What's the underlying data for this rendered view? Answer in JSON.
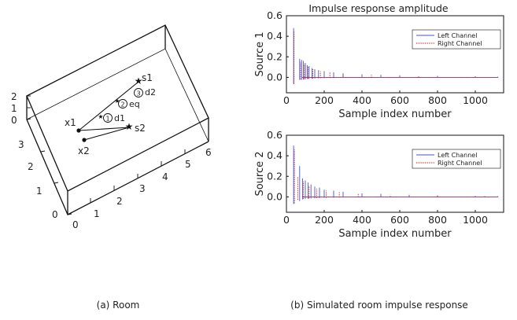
{
  "room": {
    "caption": "(a) Room",
    "x_ticks": [
      "0",
      "1",
      "2",
      "3",
      "4",
      "5",
      "6"
    ],
    "y_ticks": [
      "0",
      "1",
      "2",
      "3"
    ],
    "z_ticks": [
      "0",
      "1",
      "2"
    ],
    "points": [
      {
        "label": "x1"
      },
      {
        "label": "x2"
      },
      {
        "label": "s1"
      },
      {
        "label": "s2"
      }
    ],
    "path_labels": [
      {
        "num": "1",
        "text": "d1"
      },
      {
        "num": "2",
        "text": "eq"
      },
      {
        "num": "3",
        "text": "d2"
      }
    ]
  },
  "ir": {
    "caption": "(b) Simulated room impulse response",
    "title": "Impulse response amplitude",
    "colors": {
      "left": "#4455cc",
      "right": "#cc2222"
    }
  },
  "chart_data": [
    {
      "type": "line",
      "panel": "top",
      "title": "Impulse response amplitude",
      "xlabel": "Sample index number",
      "ylabel": "Source 1",
      "xlim": [
        0,
        1150
      ],
      "ylim": [
        -0.15,
        0.6
      ],
      "x_ticks": [
        0,
        200,
        400,
        600,
        800,
        1000
      ],
      "y_ticks": [
        0.0,
        0.2,
        0.4,
        0.6
      ],
      "legend": "top-right",
      "series": [
        {
          "name": "Left Channel",
          "style": "solid",
          "peaks": [
            [
              38,
              0.48
            ],
            [
              70,
              0.18
            ],
            [
              80,
              0.17
            ],
            [
              90,
              0.16
            ],
            [
              100,
              0.14
            ],
            [
              110,
              0.12
            ],
            [
              120,
              0.11
            ],
            [
              135,
              0.09
            ],
            [
              150,
              0.08
            ],
            [
              170,
              0.07
            ],
            [
              200,
              0.06
            ],
            [
              250,
              0.05
            ],
            [
              300,
              0.04
            ],
            [
              400,
              0.03
            ],
            [
              500,
              0.025
            ],
            [
              600,
              0.02
            ],
            [
              800,
              0.015
            ],
            [
              1000,
              0.01
            ],
            [
              1120,
              0.008
            ]
          ]
        },
        {
          "name": "Right Channel",
          "style": "dotted",
          "peaks": [
            [
              40,
              0.45
            ],
            [
              75,
              0.15
            ],
            [
              95,
              0.13
            ],
            [
              115,
              0.1
            ],
            [
              140,
              0.08
            ],
            [
              180,
              0.06
            ],
            [
              230,
              0.05
            ],
            [
              300,
              0.035
            ],
            [
              450,
              0.025
            ],
            [
              700,
              0.015
            ],
            [
              1000,
              0.008
            ]
          ]
        }
      ]
    },
    {
      "type": "line",
      "panel": "bottom",
      "xlabel": "Sample index number",
      "ylabel": "Source 2",
      "xlim": [
        0,
        1150
      ],
      "ylim": [
        -0.15,
        0.6
      ],
      "x_ticks": [
        0,
        200,
        400,
        600,
        800,
        1000
      ],
      "y_ticks": [
        0.0,
        0.2,
        0.4,
        0.6
      ],
      "legend": "top-right",
      "series": [
        {
          "name": "Left Channel",
          "style": "solid",
          "peaks": [
            [
              38,
              0.5
            ],
            [
              70,
              0.3
            ],
            [
              85,
              0.18
            ],
            [
              100,
              0.16
            ],
            [
              115,
              0.14
            ],
            [
              130,
              0.12
            ],
            [
              150,
              0.1
            ],
            [
              175,
              0.09
            ],
            [
              200,
              0.07
            ],
            [
              250,
              0.06
            ],
            [
              300,
              0.05
            ],
            [
              400,
              0.035
            ],
            [
              500,
              0.03
            ],
            [
              650,
              0.02
            ],
            [
              800,
              0.015
            ],
            [
              1000,
              0.01
            ],
            [
              1120,
              0.008
            ]
          ]
        },
        {
          "name": "Right Channel",
          "style": "dotted",
          "peaks": [
            [
              42,
              0.46
            ],
            [
              60,
              0.2
            ],
            [
              90,
              0.15
            ],
            [
              120,
              0.11
            ],
            [
              160,
              0.08
            ],
            [
              210,
              0.06
            ],
            [
              280,
              0.045
            ],
            [
              380,
              0.03
            ],
            [
              550,
              0.02
            ],
            [
              800,
              0.012
            ],
            [
              1050,
              0.008
            ]
          ]
        }
      ]
    }
  ]
}
